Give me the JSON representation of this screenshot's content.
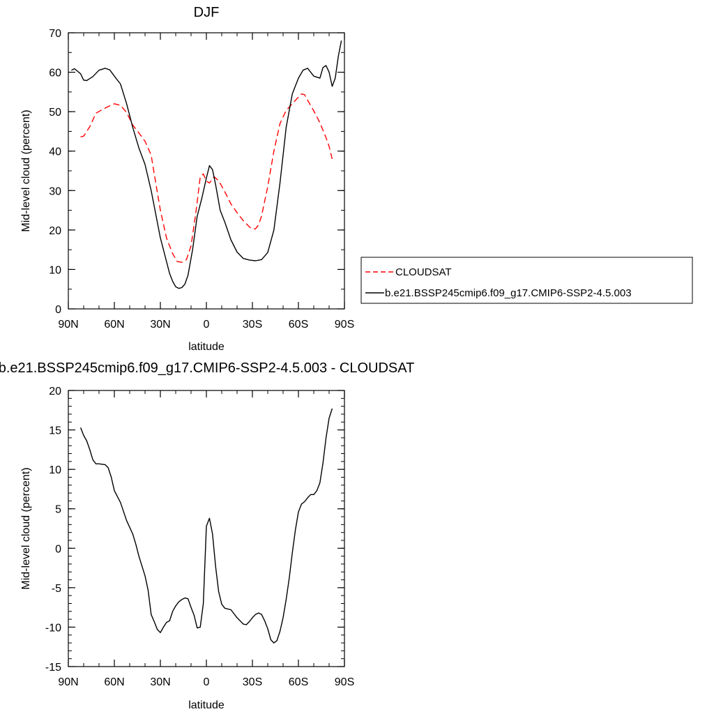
{
  "chart_data": [
    {
      "type": "line",
      "title": "DJF",
      "xlabel": "latitude",
      "ylabel": "Mid-level cloud (percent)",
      "xlim": [
        -90,
        90
      ],
      "ylim": [
        0,
        70
      ],
      "xticks": [
        -90,
        -60,
        -30,
        0,
        30,
        60,
        90
      ],
      "xtick_labels": [
        "90N",
        "60N",
        "30N",
        "0",
        "30S",
        "60S",
        "90S"
      ],
      "yticks": [
        0,
        10,
        20,
        30,
        40,
        50,
        60,
        70
      ],
      "ytick_labels": [
        "0",
        "10",
        "20",
        "30",
        "40",
        "50",
        "60",
        "70"
      ],
      "grid": false,
      "legend_position": "right",
      "series": [
        {
          "name": "CLOUDSAT",
          "color": "#ff0000",
          "dash": "dashed",
          "x": [
            -82,
            -80,
            -76,
            -72,
            -68,
            -64,
            -60,
            -56,
            -52,
            -48,
            -44,
            -40,
            -36,
            -34,
            -30,
            -26,
            -22,
            -19,
            -16,
            -13,
            -10,
            -7,
            -4,
            -2,
            0,
            2,
            5,
            8,
            12,
            16,
            20,
            24,
            28,
            30,
            32,
            34,
            36,
            40,
            44,
            48,
            52,
            56,
            60,
            62,
            64,
            66,
            70,
            74,
            78,
            80,
            82
          ],
          "y": [
            43.6,
            43.8,
            46.2,
            49.6,
            50.5,
            51.3,
            52.0,
            51.6,
            49.8,
            46.6,
            44.6,
            42.5,
            39.0,
            34.2,
            25.0,
            18.0,
            14.0,
            12.0,
            11.8,
            12.5,
            16.0,
            24.0,
            33.5,
            34.2,
            32.4,
            31.9,
            33.5,
            32.5,
            29.7,
            26.6,
            24.4,
            22.4,
            20.8,
            20.2,
            20.3,
            21.3,
            23.6,
            31.0,
            40.0,
            47.0,
            50.3,
            52.0,
            53.7,
            54.5,
            54.3,
            52.9,
            50.2,
            47.2,
            43.4,
            41.2,
            38.0
          ]
        },
        {
          "name": "b.e21.BSSP245cmip6.f09_g17.CMIP6-SSP2-4.5.003",
          "color": "#000000",
          "dash": "solid",
          "x": [
            -88,
            -86,
            -82,
            -80,
            -78,
            -74,
            -70,
            -66,
            -63,
            -60,
            -56,
            -52,
            -48,
            -44,
            -40,
            -36,
            -34,
            -30,
            -26,
            -24,
            -22,
            -20,
            -18,
            -16,
            -14,
            -12,
            -9,
            -6,
            -3,
            0,
            2,
            4,
            6,
            9,
            12,
            16,
            20,
            24,
            28,
            32,
            36,
            40,
            44,
            48,
            52,
            56,
            60,
            63,
            66,
            70,
            74,
            76,
            78,
            80,
            82,
            84,
            86,
            88
          ],
          "y": [
            60.5,
            60.9,
            59.6,
            58.0,
            57.9,
            58.9,
            60.5,
            61.0,
            60.6,
            59.0,
            57.0,
            52.0,
            46.0,
            40.8,
            36.6,
            30.0,
            26.0,
            18.0,
            12.0,
            9.0,
            7.0,
            5.6,
            5.2,
            5.4,
            6.3,
            8.5,
            15.0,
            23.5,
            28.0,
            33.2,
            36.3,
            35.3,
            31.5,
            25.0,
            22.0,
            17.5,
            14.4,
            12.8,
            12.4,
            12.2,
            12.5,
            14.3,
            20.0,
            32.0,
            46.0,
            54.5,
            58.5,
            60.5,
            61.0,
            59.0,
            58.5,
            61.2,
            61.7,
            60.0,
            56.4,
            58.5,
            64.0,
            68.0
          ]
        }
      ]
    },
    {
      "type": "line",
      "title": "b.e21.BSSP245cmip6.f09_g17.CMIP6-SSP2-4.5.003 - CLOUDSAT",
      "xlabel": "latitude",
      "ylabel": "Mid-level cloud (percent)",
      "xlim": [
        -90,
        90
      ],
      "ylim": [
        -15,
        20
      ],
      "xticks": [
        -90,
        -60,
        -30,
        0,
        30,
        60,
        90
      ],
      "xtick_labels": [
        "90N",
        "60N",
        "30N",
        "0",
        "30S",
        "60S",
        "90S"
      ],
      "yticks": [
        -15,
        -10,
        -5,
        0,
        5,
        10,
        15,
        20
      ],
      "ytick_labels": [
        "-15",
        "-10",
        "-5",
        "0",
        "5",
        "10",
        "15",
        "20"
      ],
      "grid": false,
      "series": [
        {
          "color": "#000000",
          "dash": "solid",
          "x": [
            -82,
            -80,
            -78,
            -76,
            -74,
            -72,
            -70,
            -66,
            -64,
            -62,
            -60,
            -56,
            -52,
            -48,
            -46,
            -44,
            -40,
            -38,
            -36,
            -34,
            -32,
            -30,
            -28,
            -26,
            -24,
            -22,
            -20,
            -18,
            -16,
            -14,
            -12,
            -10,
            -8,
            -6,
            -4,
            -2,
            0,
            2,
            4,
            6,
            8,
            10,
            12,
            16,
            20,
            24,
            26,
            28,
            30,
            32,
            34,
            36,
            38,
            40,
            42,
            44,
            46,
            48,
            50,
            52,
            54,
            56,
            58,
            60,
            62,
            64,
            66,
            68,
            70,
            72,
            74,
            76,
            78,
            80,
            82
          ],
          "y": [
            15.3,
            14.3,
            13.6,
            12.5,
            11.2,
            10.7,
            10.7,
            10.6,
            10.2,
            9.0,
            7.3,
            5.8,
            3.5,
            1.8,
            0.5,
            -1.0,
            -3.5,
            -5.3,
            -8.4,
            -9.3,
            -10.3,
            -10.7,
            -10.0,
            -9.4,
            -9.2,
            -8.0,
            -7.3,
            -6.8,
            -6.5,
            -6.3,
            -6.4,
            -7.5,
            -8.5,
            -10.1,
            -10.0,
            -7.0,
            2.8,
            3.8,
            1.8,
            -2.3,
            -5.5,
            -7.1,
            -7.6,
            -7.8,
            -8.8,
            -9.6,
            -9.7,
            -9.3,
            -8.8,
            -8.4,
            -8.2,
            -8.4,
            -9.2,
            -10.2,
            -11.6,
            -12.0,
            -11.7,
            -10.5,
            -8.8,
            -6.5,
            -3.8,
            -0.6,
            2.3,
            4.6,
            5.6,
            5.9,
            6.4,
            6.8,
            6.8,
            7.3,
            8.3,
            10.8,
            14.0,
            16.5,
            17.7
          ]
        }
      ]
    }
  ]
}
